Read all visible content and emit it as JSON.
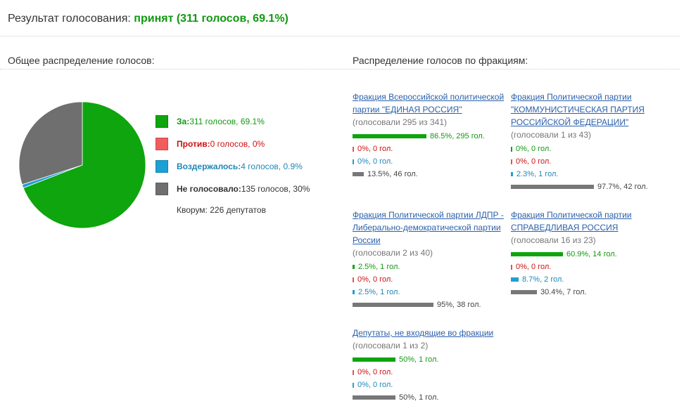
{
  "result": {
    "label": "Результат голосования:",
    "value": "принят (311 голосов, 69.1%)"
  },
  "overall": {
    "title": "Общее распределение голосов:",
    "legend": [
      {
        "label": "За:",
        "text": "311 голосов, 69.1%",
        "color": "#0ea50e",
        "text_color": "#119911",
        "fraction": 0.691
      },
      {
        "label": "Против:",
        "text": "0 голосов, 0%",
        "color": "#f25c5c",
        "text_color": "#cc1111",
        "fraction": 0.0
      },
      {
        "label": "Воздержалось:",
        "text": "4 голосов, 0.9%",
        "color": "#1ba1d6",
        "text_color": "#1e87b4",
        "fraction": 0.009
      },
      {
        "label": "Не голосовало:",
        "text": "135 голосов, 30%",
        "color": "#6f6f6f",
        "text_color": "#333333",
        "fraction": 0.3
      }
    ],
    "quorum": "Кворум: 226 депутатов"
  },
  "factions_title": "Распределение голосов по фракциям:",
  "factions": [
    {
      "name": "Фракция Всероссийской политической партии \"ЕДИНАЯ РОССИЯ\"",
      "voted": "(голосовали 295 из 341)",
      "rows": [
        {
          "kind": "for",
          "pct": 86.5,
          "text": "86.5%, 295 гол."
        },
        {
          "kind": "against",
          "pct": 0,
          "text": "0%, 0 гол."
        },
        {
          "kind": "abstain",
          "pct": 0,
          "text": "0%, 0 гол."
        },
        {
          "kind": "absent",
          "pct": 13.5,
          "text": "13.5%, 46 гол."
        }
      ]
    },
    {
      "name": "Фракция Политической партии \"КОММУНИСТИЧЕСКАЯ ПАРТИЯ РОССИЙСКОЙ ФЕДЕРАЦИИ\"",
      "voted": "(голосовали 1 из 43)",
      "rows": [
        {
          "kind": "for",
          "pct": 0,
          "text": "0%, 0 гол."
        },
        {
          "kind": "against",
          "pct": 0,
          "text": "0%, 0 гол."
        },
        {
          "kind": "abstain",
          "pct": 2.3,
          "text": "2.3%, 1 гол."
        },
        {
          "kind": "absent",
          "pct": 97.7,
          "text": "97.7%, 42 гол."
        }
      ]
    },
    {
      "name": "Фракция Политической партии ЛДПР - Либерально-демократической партии России",
      "voted": "(голосовали 2 из 40)",
      "rows": [
        {
          "kind": "for",
          "pct": 2.5,
          "text": "2.5%, 1 гол."
        },
        {
          "kind": "against",
          "pct": 0,
          "text": "0%, 0 гол."
        },
        {
          "kind": "abstain",
          "pct": 2.5,
          "text": "2.5%, 1 гол."
        },
        {
          "kind": "absent",
          "pct": 95,
          "text": "95%, 38 гол."
        }
      ]
    },
    {
      "name": "Фракция Политической партии СПРАВЕДЛИВАЯ РОССИЯ",
      "voted": "(голосовали 16 из 23)",
      "rows": [
        {
          "kind": "for",
          "pct": 60.9,
          "text": "60.9%, 14 гол."
        },
        {
          "kind": "against",
          "pct": 0,
          "text": "0%, 0 гол."
        },
        {
          "kind": "abstain",
          "pct": 8.7,
          "text": "8.7%, 2 гол."
        },
        {
          "kind": "absent",
          "pct": 30.4,
          "text": "30.4%, 7 гол."
        }
      ]
    },
    {
      "name": "Депутаты, не входящие во фракции",
      "voted": "(голосовали 1 из 2)",
      "rows": [
        {
          "kind": "for",
          "pct": 50,
          "text": "50%, 1 гол."
        },
        {
          "kind": "against",
          "pct": 0,
          "text": "0%, 0 гол."
        },
        {
          "kind": "abstain",
          "pct": 0,
          "text": "0%, 0 гол."
        },
        {
          "kind": "absent",
          "pct": 50,
          "text": "50%, 1 гол."
        }
      ]
    }
  ],
  "chart_data": {
    "type": "pie",
    "categories": [
      "За",
      "Против",
      "Воздержалось",
      "Не голосовало"
    ],
    "values": [
      311,
      0,
      4,
      135
    ],
    "colors": [
      "#0ea50e",
      "#f25c5c",
      "#1ba1d6",
      "#6f6f6f"
    ]
  }
}
